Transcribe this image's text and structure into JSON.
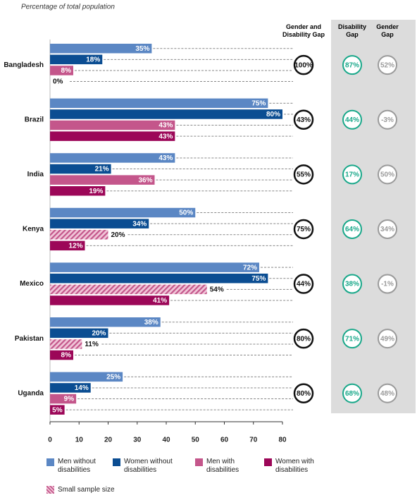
{
  "chart_data": {
    "type": "hbar",
    "subtitle": "Percentage of total population",
    "categories": [
      "Bangladesh",
      "Brazil",
      "India",
      "Kenya",
      "Mexico",
      "Pakistan",
      "Uganda"
    ],
    "series": [
      {
        "name": "Men without disabilities",
        "color": "#5b87c4",
        "values": [
          35,
          75,
          43,
          50,
          72,
          38,
          25
        ],
        "value_labels": [
          "35%",
          "75%",
          "43%",
          "50%",
          "72%",
          "38%",
          "25%"
        ]
      },
      {
        "name": "Women without disabilities",
        "color": "#0b4d92",
        "values": [
          18,
          80,
          21,
          34,
          75,
          20,
          14
        ],
        "value_labels": [
          "18%",
          "80%",
          "21%",
          "34%",
          "75%",
          "20%",
          "14%"
        ]
      },
      {
        "name": "Men with disabilities",
        "color": "#c4568b",
        "values": [
          8,
          43,
          36,
          20,
          54,
          11,
          9
        ],
        "value_labels": [
          "8%",
          "43%",
          "36%",
          "20%",
          "54%",
          "11%",
          "9%"
        ],
        "small_sample": [
          false,
          false,
          false,
          true,
          true,
          true,
          false
        ]
      },
      {
        "name": "Women with disabilities",
        "color": "#9c0758",
        "values": [
          0,
          43,
          19,
          12,
          41,
          8,
          5
        ],
        "value_labels": [
          "0%",
          "43%",
          "19%",
          "12%",
          "41%",
          "8%",
          "5%"
        ]
      }
    ],
    "small_sample_label": "Small sample size",
    "gap_columns": [
      {
        "name": "Gender and Disability Gap",
        "color": "#111111",
        "values": [
          100,
          43,
          55,
          75,
          44,
          80,
          80
        ],
        "value_labels": [
          "100%",
          "43%",
          "55%",
          "75%",
          "44%",
          "80%",
          "80%"
        ]
      },
      {
        "name": "Disability Gap",
        "color": "#1aa88a",
        "values": [
          87,
          44,
          17,
          64,
          38,
          71,
          68
        ],
        "value_labels": [
          "87%",
          "44%",
          "17%",
          "64%",
          "38%",
          "71%",
          "68%"
        ]
      },
      {
        "name": "Gender Gap",
        "color": "#9a9a9a",
        "values": [
          52,
          -3,
          50,
          34,
          -1,
          49,
          48
        ],
        "value_labels": [
          "52%",
          "-3%",
          "50%",
          "34%",
          "-1%",
          "49%",
          "48%"
        ]
      }
    ],
    "xlim": [
      0,
      80
    ],
    "xticks": [
      0,
      10,
      20,
      30,
      40,
      50,
      60,
      70,
      80
    ]
  }
}
